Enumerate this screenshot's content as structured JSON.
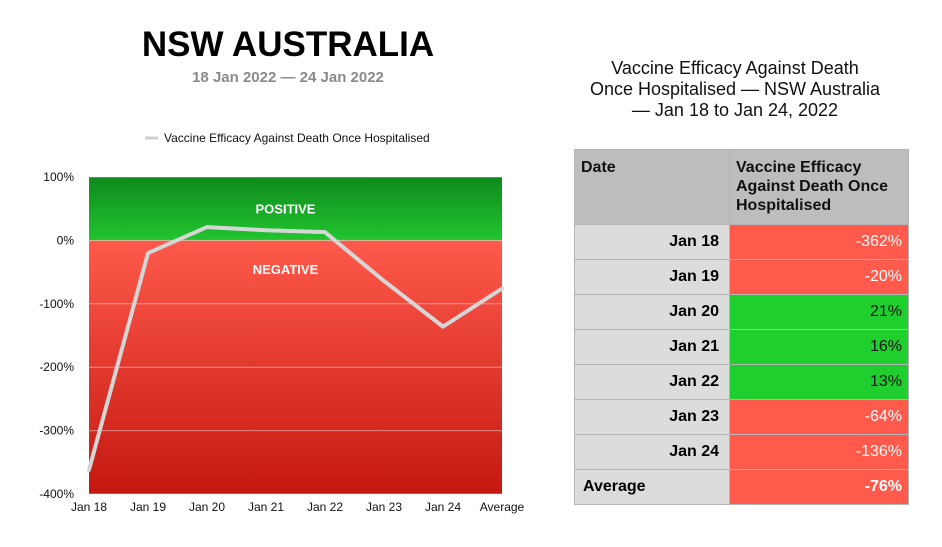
{
  "header": {
    "title": "NSW AUSTRALIA",
    "subtitle": "18 Jan 2022 — 24 Jan 2022"
  },
  "colors": {
    "positive_top": "#0f8a1c",
    "positive_bottom": "#21c42f",
    "negative_top": "#ff5a4c",
    "negative_bottom": "#c41810",
    "line": "#d6d6d6",
    "cell_green": "#1fcf2e",
    "cell_red": "#ff5a4c",
    "date_bg": "#dcdcdc",
    "header_bg": "#bdbdbd"
  },
  "chart_data": {
    "type": "line",
    "categories": [
      "Jan 18",
      "Jan 19",
      "Jan 20",
      "Jan 21",
      "Jan 22",
      "Jan 23",
      "Jan 24",
      "Average"
    ],
    "series": [
      {
        "name": "Vaccine Efficacy Against Death Once Hospitalised",
        "values": [
          -362,
          -20,
          21,
          16,
          13,
          -64,
          -136,
          -76
        ]
      }
    ],
    "ylim": [
      -400,
      100
    ],
    "yticks": [
      100,
      0,
      -100,
      -200,
      -300,
      -400
    ],
    "ytick_labels": [
      "100%",
      "0%",
      "-100%",
      "-200%",
      "-300%",
      "-400%"
    ],
    "zone_labels": {
      "positive": "POSITIVE",
      "negative": "NEGATIVE"
    },
    "legend": "top",
    "grid": true
  },
  "table": {
    "title_lines": [
      "Vaccine Efficacy Against Death",
      "Once Hospitalised — NSW Australia",
      "— Jan 18 to Jan 24, 2022"
    ],
    "headers": [
      "Date",
      "Vaccine Efficacy Against Death Once Hospitalised"
    ],
    "rows": [
      {
        "date": "Jan 18",
        "value": "-362%",
        "status": "negative"
      },
      {
        "date": "Jan 19",
        "value": "-20%",
        "status": "negative"
      },
      {
        "date": "Jan 20",
        "value": "21%",
        "status": "positive"
      },
      {
        "date": "Jan 21",
        "value": "16%",
        "status": "positive"
      },
      {
        "date": "Jan 22",
        "value": "13%",
        "status": "positive"
      },
      {
        "date": "Jan 23",
        "value": "-64%",
        "status": "negative"
      },
      {
        "date": "Jan 24",
        "value": "-136%",
        "status": "negative"
      }
    ],
    "average": {
      "label": "Average",
      "value": "-76%",
      "status": "negative"
    }
  }
}
